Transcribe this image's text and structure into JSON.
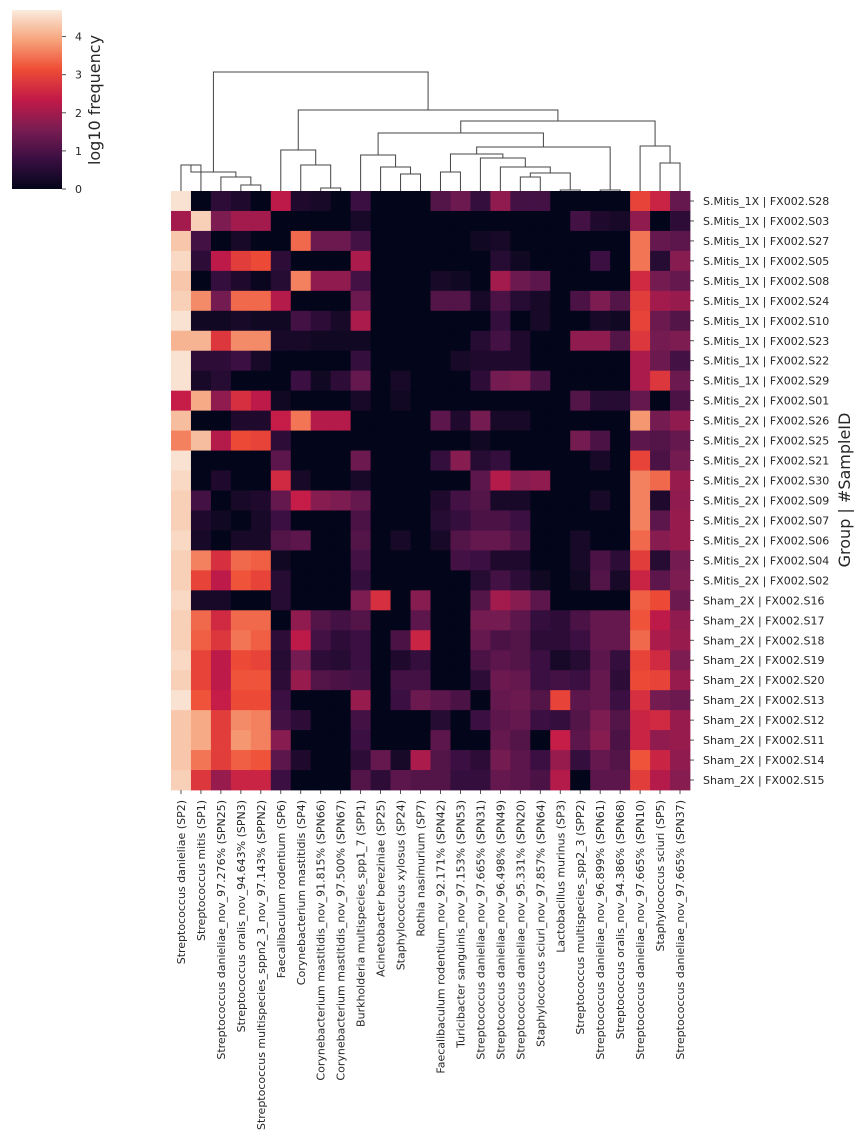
{
  "chart_data": {
    "type": "heatmap",
    "colorbar": {
      "label": "log10 frequency",
      "ticks": [
        0,
        1,
        2,
        3,
        4
      ],
      "range": [
        0,
        4.7
      ]
    },
    "ylabel": "Group | #SampleID",
    "rows": [
      "S.Mitis_1X | FX002.S28",
      "S.Mitis_1X | FX002.S03",
      "S.Mitis_1X | FX002.S27",
      "S.Mitis_1X | FX002.S05",
      "S.Mitis_1X | FX002.S08",
      "S.Mitis_1X | FX002.S24",
      "S.Mitis_1X | FX002.S10",
      "S.Mitis_1X | FX002.S23",
      "S.Mitis_1X | FX002.S22",
      "S.Mitis_1X | FX002.S29",
      "S.Mitis_2X | FX002.S01",
      "S.Mitis_2X | FX002.S26",
      "S.Mitis_2X | FX002.S25",
      "S.Mitis_2X | FX002.S21",
      "S.Mitis_2X | FX002.S30",
      "S.Mitis_2X | FX002.S09",
      "S.Mitis_2X | FX002.S07",
      "S.Mitis_2X | FX002.S06",
      "S.Mitis_2X | FX002.S04",
      "S.Mitis_2X | FX002.S02",
      "Sham_2X | FX002.S16",
      "Sham_2X | FX002.S17",
      "Sham_2X | FX002.S18",
      "Sham_2X | FX002.S19",
      "Sham_2X | FX002.S20",
      "Sham_2X | FX002.S13",
      "Sham_2X | FX002.S12",
      "Sham_2X | FX002.S11",
      "Sham_2X | FX002.S14",
      "Sham_2X | FX002.S15"
    ],
    "columns": [
      "Streptococcus danieliae (SP2)",
      "Streptococcus mitis (SP1)",
      "Streptococcus danieliae_nov_97.276% (SPN25)",
      "Streptococcus oralis_nov_94.643% (SPN3)",
      "Streptococcus multispecies_sppn2_3_nov_97.143% (SPPN2)",
      "Faecalibaculum rodentium (SP6)",
      "Corynebacterium mastitidis (SP4)",
      "Corynebacterium mastitidis_nov_91.815% (SPN66)",
      "Corynebacterium mastitidis_nov_97.500% (SPN67)",
      "Burkholderia multispecies_spp1_7 (SPP1)",
      "Acinetobacter bereziniae (SP25)",
      "Staphylococcus xylosus (SP24)",
      "Rothia nasimurium (SP7)",
      "Faecalibaculum rodentium_nov_92.171% (SPN42)",
      "Turicibacter sanguinis_nov_97.153% (SPN53)",
      "Streptococcus danieliae_nov_97.665% (SPN31)",
      "Streptococcus danieliae_nov_96.498% (SPN49)",
      "Streptococcus danieliae_nov_95.331% (SPN20)",
      "Staphylococcus sciuri_nov_97.857% (SPN64)",
      "Lactobacillus murinus (SP3)",
      "Streptococcus multispecies_spp2_3 (SPP2)",
      "Streptococcus danieliae_nov_96.899% (SPN61)",
      "Streptococcus oralis_nov_94.386% (SPN68)",
      "Streptococcus danieliae_nov_97.665% (SPN10)",
      "Staphylococcus sciuri (SP5)",
      "Streptococcus danieliae_nov_97.665% (SPN37)"
    ],
    "values": [
      [
        4.6,
        0,
        0.6,
        0.4,
        0,
        2.3,
        0.4,
        0.3,
        0,
        0.8,
        0,
        0,
        0,
        1.1,
        1.4,
        0.7,
        1.8,
        0.9,
        0.9,
        0,
        0,
        0,
        0,
        3.0,
        2.5,
        1.3
      ],
      [
        2.0,
        4.4,
        1.6,
        2.0,
        2.0,
        0,
        0,
        0,
        0,
        0.3,
        0,
        0,
        0,
        0,
        0,
        0,
        0,
        0,
        0,
        0,
        0.9,
        0.4,
        0.3,
        1.8,
        0,
        0.6
      ],
      [
        4.3,
        0.9,
        0,
        0.3,
        0,
        0,
        3.4,
        1.4,
        1.4,
        0.9,
        0,
        0,
        0,
        0,
        0,
        0.2,
        0.3,
        0,
        0,
        0,
        0,
        0,
        0,
        3.5,
        1.3,
        1.2
      ],
      [
        4.5,
        0.6,
        2.3,
        2.9,
        3.1,
        0.6,
        0,
        0,
        0,
        2.1,
        0,
        0,
        0,
        0,
        0,
        0,
        0.5,
        0.2,
        0,
        0,
        0,
        0.8,
        0,
        3.5,
        0.5,
        1.7
      ],
      [
        4.3,
        0,
        0.7,
        0.4,
        0.1,
        0.5,
        3.6,
        1.8,
        1.8,
        0.9,
        0,
        0,
        0,
        0.3,
        0.2,
        0,
        2.0,
        1.4,
        1.2,
        0,
        0,
        0,
        0,
        2.6,
        1.5,
        1.3
      ],
      [
        4.4,
        3.7,
        1.5,
        3.4,
        3.4,
        2.2,
        0,
        0,
        0,
        1.4,
        0,
        0,
        0,
        1.1,
        1.1,
        0.3,
        1.0,
        0.5,
        0.3,
        0,
        1.0,
        1.6,
        1.1,
        2.9,
        2.0,
        1.9
      ],
      [
        4.6,
        0.2,
        0.2,
        0.3,
        0.2,
        0.2,
        0.9,
        0.6,
        0.3,
        2.1,
        0,
        0,
        0,
        0,
        0,
        0,
        0.7,
        0,
        0.3,
        0,
        0,
        0.3,
        0.2,
        3.0,
        1.4,
        1.1
      ],
      [
        4.1,
        4.1,
        2.8,
        3.7,
        3.7,
        0.3,
        0.3,
        0.2,
        0.2,
        0.2,
        0,
        0,
        0,
        0,
        0,
        0.5,
        0.9,
        0.4,
        0,
        0,
        1.8,
        1.8,
        1.1,
        2.8,
        1.5,
        1.6
      ],
      [
        4.6,
        0.6,
        0.6,
        0.8,
        0.3,
        0,
        0,
        0,
        0,
        0.7,
        0,
        0,
        0,
        0,
        0.3,
        0.4,
        0.4,
        0.4,
        0,
        0,
        0,
        0,
        0,
        2.1,
        1.4,
        0.9
      ],
      [
        4.6,
        0.3,
        0.5,
        0,
        0,
        0,
        0.8,
        0.2,
        0.6,
        1.3,
        0,
        0.3,
        0,
        0,
        0,
        0.6,
        1.5,
        1.6,
        1.0,
        0,
        0,
        0,
        0,
        2.1,
        2.8,
        1.4
      ],
      [
        2.4,
        4.0,
        1.8,
        2.7,
        2.3,
        0.2,
        0,
        0,
        0,
        0.3,
        0,
        0.2,
        0,
        0,
        0,
        0,
        0,
        0,
        0,
        0,
        1.1,
        0.5,
        0.5,
        1.3,
        0,
        1.0
      ],
      [
        4.2,
        0,
        0,
        0.4,
        0.4,
        2.4,
        3.5,
        2.2,
        2.2,
        0,
        0,
        0,
        0,
        1.2,
        0.4,
        1.5,
        0.3,
        0.3,
        0,
        0,
        0,
        0,
        0,
        3.8,
        1.5,
        1.8
      ],
      [
        3.6,
        4.2,
        2.2,
        3.1,
        3.0,
        0.6,
        0,
        0,
        0,
        0,
        0,
        0,
        0,
        0,
        0,
        0.2,
        0,
        0,
        0,
        0,
        1.5,
        1.0,
        0,
        1.2,
        1.1,
        1.3
      ],
      [
        4.6,
        0,
        0,
        0,
        0,
        1.2,
        0,
        0,
        0,
        1.4,
        0,
        0,
        0,
        0.7,
        1.7,
        0.5,
        0.7,
        0,
        0,
        0,
        0,
        0.3,
        0,
        3.0,
        1.0,
        1.5
      ],
      [
        4.5,
        0,
        0.4,
        0,
        0,
        2.6,
        0.3,
        0,
        0,
        0.3,
        0,
        0,
        0,
        0,
        0,
        1.2,
        2.2,
        1.7,
        1.8,
        0,
        0,
        0,
        0,
        3.6,
        3.4,
        1.9
      ],
      [
        4.4,
        0.9,
        0,
        0.3,
        0.4,
        1.3,
        2.4,
        1.7,
        1.6,
        1.3,
        0,
        0,
        0,
        0.4,
        0.9,
        1.1,
        0.3,
        0.3,
        0,
        0,
        0,
        0.3,
        0,
        3.6,
        0.4,
        1.8
      ],
      [
        4.4,
        0.4,
        0.2,
        0,
        0.3,
        0.8,
        0,
        0,
        0,
        1.0,
        0,
        0,
        0,
        0.5,
        0.7,
        1.0,
        1.0,
        0.8,
        0,
        0,
        0,
        0,
        0,
        3.6,
        1.2,
        1.9
      ],
      [
        4.5,
        0.3,
        0,
        0.3,
        0.3,
        1.1,
        1.2,
        0,
        0,
        1.1,
        0,
        0.3,
        0,
        0.3,
        1.1,
        1.3,
        1.3,
        1.0,
        0,
        0,
        0.3,
        0,
        0,
        3.4,
        1.7,
        1.9
      ],
      [
        4.4,
        3.6,
        2.7,
        3.4,
        3.3,
        0.2,
        0,
        0,
        0,
        0.9,
        0,
        0,
        0,
        0,
        0.9,
        0.8,
        0.4,
        0.4,
        0,
        0,
        0.3,
        1.0,
        0.6,
        2.9,
        0.5,
        1.5
      ],
      [
        4.4,
        3.0,
        2.3,
        3.2,
        3.0,
        0.5,
        0,
        0,
        0,
        0.7,
        0,
        0,
        0,
        0,
        0,
        0.5,
        0.9,
        0.6,
        0.2,
        0,
        0.2,
        1.1,
        0.3,
        2.5,
        1.2,
        1.6
      ],
      [
        4.5,
        0.3,
        0.3,
        0,
        0,
        0.5,
        0,
        0,
        0,
        1.6,
        2.7,
        0,
        1.7,
        0,
        0,
        1.1,
        2.0,
        1.7,
        1.2,
        0,
        0,
        0,
        0,
        3.3,
        3.1,
        1.4
      ],
      [
        4.4,
        3.4,
        2.6,
        3.4,
        3.4,
        0,
        1.8,
        1.1,
        0.9,
        1.1,
        0,
        0,
        1.2,
        0,
        0,
        1.5,
        1.5,
        1.2,
        0.7,
        0.6,
        1.0,
        1.3,
        1.3,
        3.2,
        2.3,
        1.8
      ],
      [
        4.4,
        3.3,
        2.8,
        3.5,
        3.3,
        0.6,
        2.3,
        0.9,
        0.6,
        0.8,
        0,
        1.0,
        2.5,
        0,
        0,
        1.3,
        1.0,
        1.1,
        0.6,
        0.6,
        0.8,
        1.3,
        1.3,
        3.4,
        2.1,
        1.9
      ],
      [
        4.5,
        3.0,
        2.3,
        3.1,
        3.0,
        0.5,
        1.5,
        0.6,
        0.5,
        0.8,
        0,
        0.4,
        0.7,
        0,
        0,
        1.0,
        1.2,
        1.1,
        0.8,
        0.3,
        0.5,
        1.2,
        0.7,
        3.0,
        2.6,
        1.6
      ],
      [
        4.4,
        3.0,
        2.3,
        3.2,
        3.2,
        0.6,
        1.9,
        1.1,
        1.0,
        0.9,
        0,
        0.9,
        0.9,
        0,
        0,
        0.6,
        1.4,
        1.3,
        0.8,
        0.9,
        0.8,
        1.3,
        0.6,
        3.1,
        3.0,
        1.9
      ],
      [
        4.6,
        3.2,
        2.4,
        3.1,
        3.1,
        0.8,
        0,
        0,
        0,
        1.9,
        0,
        0.8,
        1.4,
        1.2,
        1.0,
        0,
        1.3,
        1.4,
        1.1,
        3.0,
        1.2,
        1.3,
        0.8,
        2.7,
        1.5,
        1.4
      ],
      [
        4.3,
        4.0,
        2.9,
        3.7,
        3.6,
        0.9,
        0.6,
        0,
        0,
        0.9,
        0,
        0,
        0,
        0.5,
        0,
        0.8,
        1.2,
        1.3,
        0.8,
        0.7,
        1.1,
        1.6,
        1.1,
        2.5,
        2.6,
        1.9
      ],
      [
        4.3,
        4.0,
        2.9,
        3.8,
        3.6,
        1.7,
        0,
        0,
        0,
        0.8,
        0,
        0,
        0,
        1.2,
        0,
        0,
        1.3,
        1.1,
        0,
        2.4,
        1.2,
        1.7,
        1.0,
        2.5,
        1.8,
        1.9
      ],
      [
        4.3,
        3.5,
        2.9,
        3.3,
        3.2,
        1.2,
        0.4,
        0,
        0,
        0.6,
        1.3,
        0.3,
        2.1,
        1.1,
        0.8,
        0.6,
        1.5,
        1.2,
        0.8,
        1.9,
        0.7,
        1.3,
        1.1,
        3.2,
        2.5,
        1.8
      ],
      [
        4.4,
        2.8,
        1.9,
        2.5,
        2.5,
        0.8,
        0,
        0,
        0,
        1.1,
        0.6,
        1.2,
        1.1,
        1.1,
        0.7,
        0.7,
        1.3,
        1.2,
        1.0,
        2.2,
        0,
        1.2,
        1.2,
        2.9,
        2.2,
        1.7
      ]
    ]
  }
}
